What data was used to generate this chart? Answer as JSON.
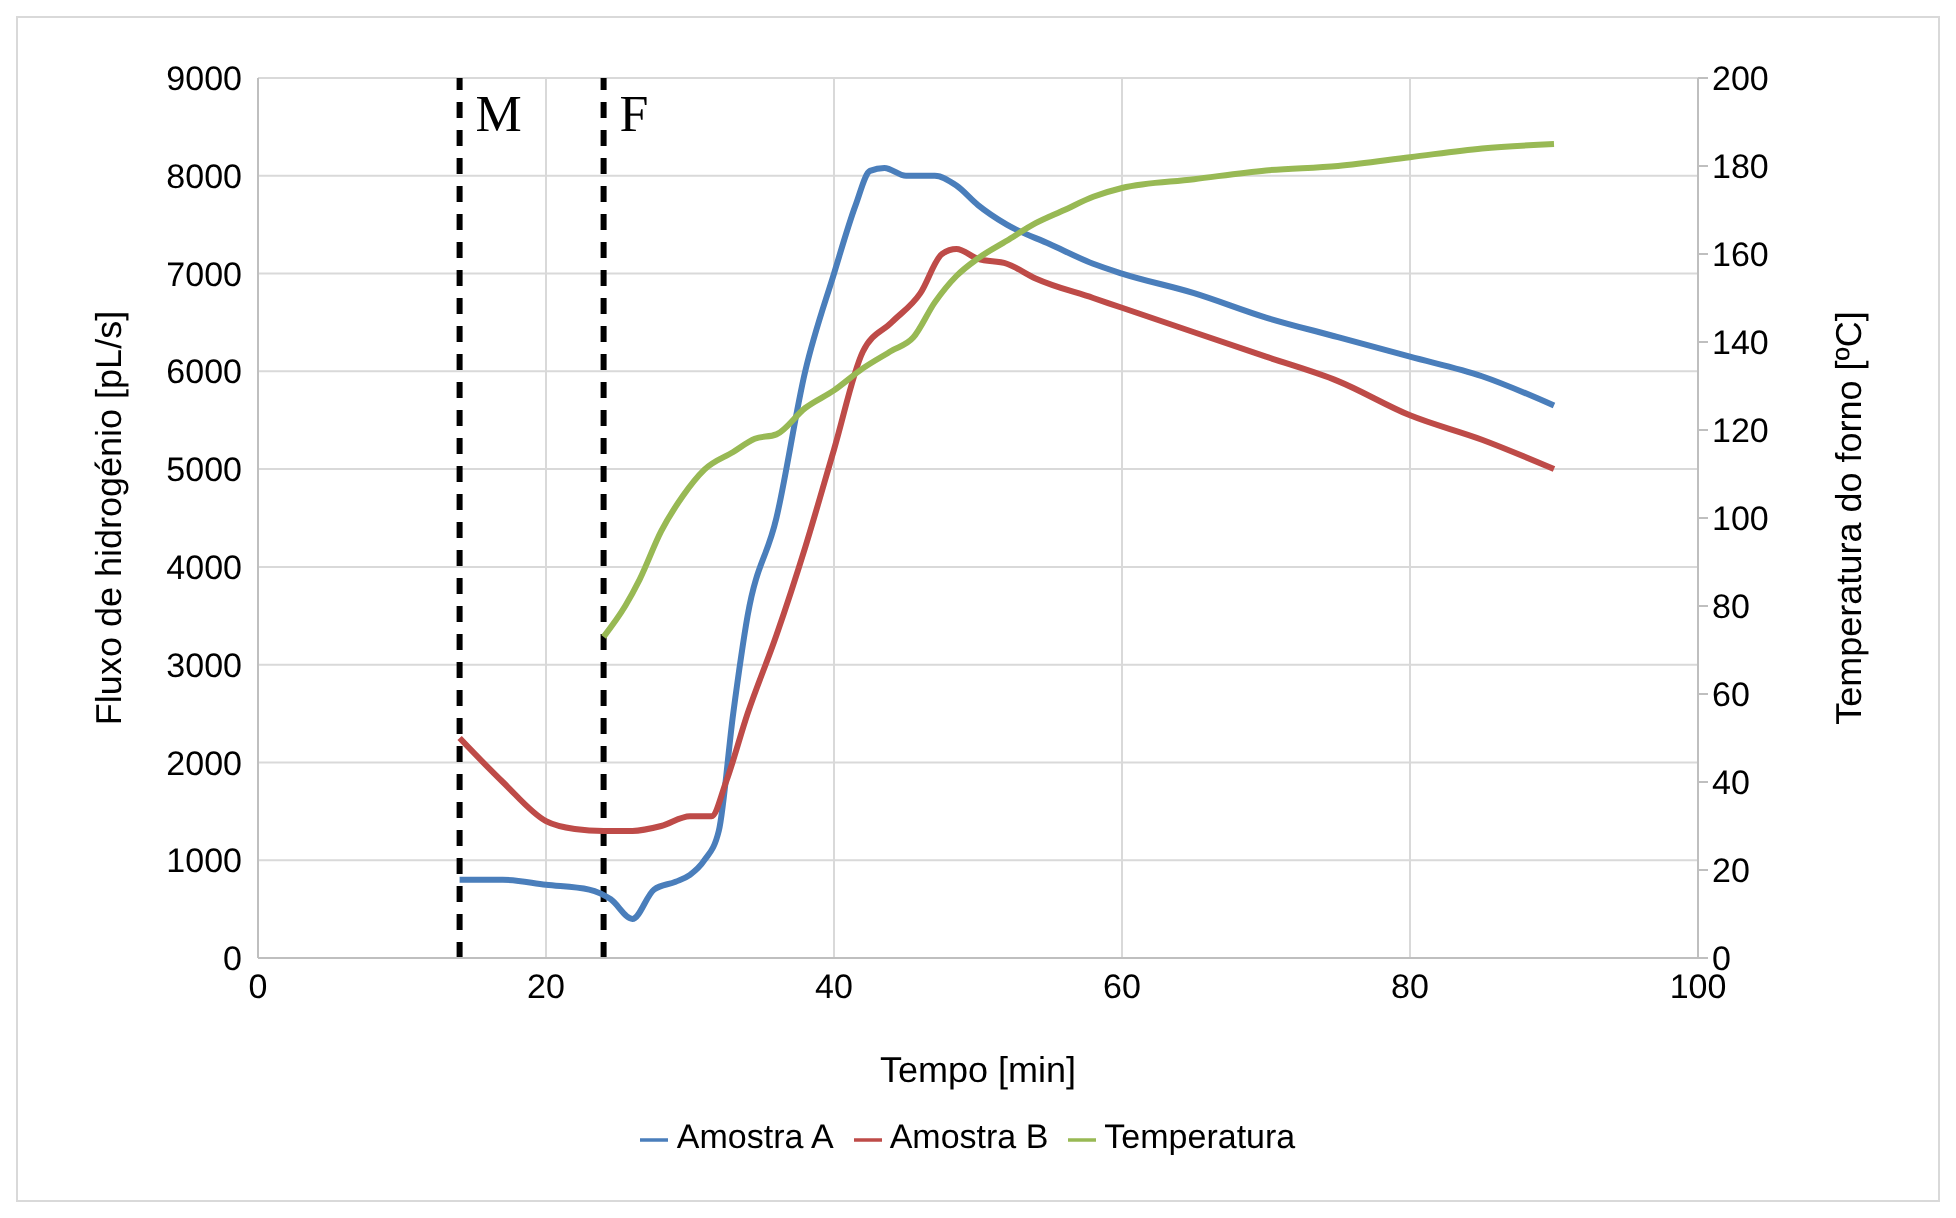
{
  "chart_data": {
    "type": "line",
    "xlabel": "Tempo [min]",
    "ylabel": "Fluxo de hidrogénio [pL/s]",
    "y2label": "Temperatura do forno [ºC]",
    "xlim": [
      0,
      100
    ],
    "xticks": [
      0,
      20,
      40,
      60,
      80,
      100
    ],
    "ylim": [
      0,
      9000
    ],
    "yticks": [
      0,
      1000,
      2000,
      3000,
      4000,
      5000,
      6000,
      7000,
      8000,
      9000
    ],
    "y2lim": [
      0,
      200
    ],
    "y2ticks": [
      0,
      20,
      40,
      60,
      80,
      100,
      120,
      140,
      160,
      180,
      200
    ],
    "grid": true,
    "legend": "bottom",
    "marker": "none",
    "line_style": "solid",
    "ref_lines": [
      {
        "axis": "x",
        "value": 14,
        "label": "M",
        "color": "#000000",
        "line_style": "dashed"
      },
      {
        "axis": "x",
        "value": 24,
        "label": "F",
        "color": "#000000",
        "line_style": "dashed"
      }
    ],
    "series": [
      {
        "name": "Amostra A",
        "color": "#4a7ebb",
        "x": [
          14,
          17,
          20,
          23,
          24.5,
          26,
          27.5,
          29,
          30,
          31,
          32,
          33,
          34,
          36,
          38,
          40,
          41.5,
          42.5,
          43.5,
          45,
          47,
          48.5,
          50,
          52,
          55,
          58,
          60,
          65,
          70,
          75,
          80,
          85,
          90
        ],
        "values": [
          800,
          800,
          750,
          700,
          600,
          400,
          700,
          780,
          850,
          1000,
          1300,
          2500,
          3500,
          4500,
          6000,
          7000,
          7700,
          8050,
          8080,
          8000,
          8000,
          7900,
          7700,
          7500,
          7300,
          7100,
          7000,
          6800,
          6550,
          6350,
          6150,
          5950,
          5650
        ]
      },
      {
        "name": "Amostra B",
        "color": "#be4b48",
        "x": [
          14,
          17,
          20,
          22,
          24,
          26,
          28,
          30,
          31.5,
          32.5,
          34,
          36,
          38,
          40,
          42,
          44,
          46,
          47.5,
          48.5,
          50,
          52,
          54,
          58,
          60,
          65,
          70,
          75,
          80,
          85,
          90
        ],
        "values": [
          2250,
          1800,
          1400,
          1320,
          1300,
          1300,
          1350,
          1450,
          1450,
          1800,
          2500,
          3300,
          4200,
          5200,
          6200,
          6500,
          6800,
          7200,
          7250,
          7150,
          7100,
          6950,
          6750,
          6650,
          6400,
          6150,
          5900,
          5550,
          5300,
          5000
        ]
      },
      {
        "name": "Temperatura",
        "color": "#98b954",
        "axis": "y2",
        "x": [
          24,
          25.5,
          26.5,
          28,
          29.5,
          31,
          33,
          34.5,
          36,
          38,
          40,
          42,
          44,
          45.5,
          47,
          48.5,
          50,
          52,
          54,
          56,
          58,
          60,
          65,
          70,
          75,
          80,
          85,
          90
        ],
        "values": [
          73,
          80,
          86,
          97,
          105,
          111,
          115,
          118,
          119,
          125,
          129,
          134,
          138,
          141,
          149,
          155,
          159,
          163,
          167,
          170,
          173,
          175,
          177,
          179,
          180,
          182,
          184,
          185
        ]
      }
    ]
  }
}
